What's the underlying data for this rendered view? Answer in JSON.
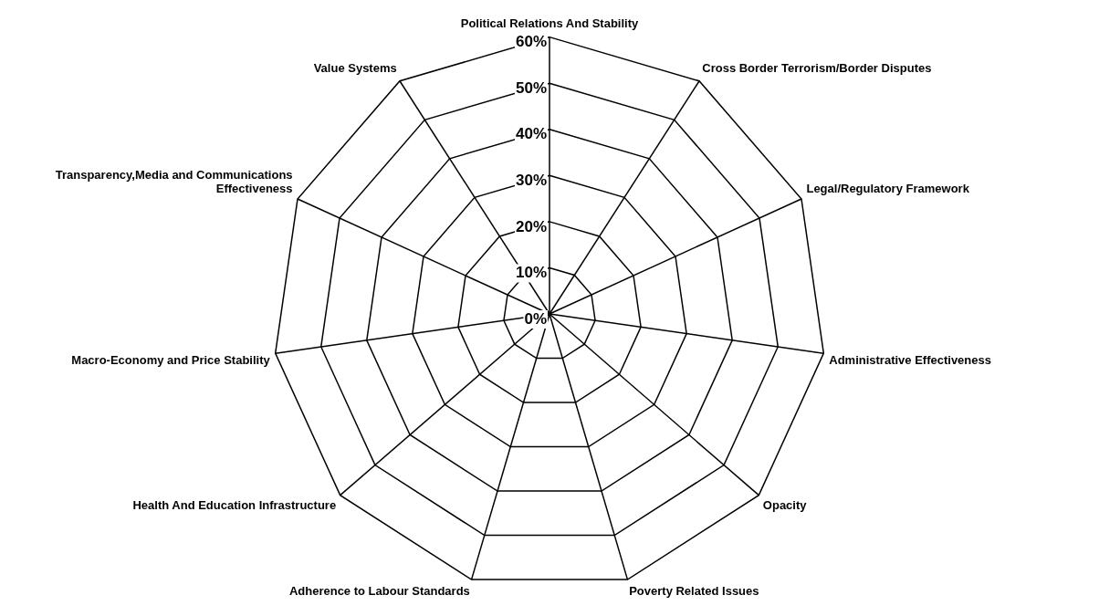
{
  "chart_data": {
    "type": "radar",
    "categories": [
      "Political Relations And Stability",
      "Cross Border Terrorism/Border Disputes",
      "Legal/Regulatory Framework",
      "Administrative Effectiveness",
      "Opacity",
      "Poverty Related Issues",
      "Adherence to Labour Standards",
      "Health And Education Infrastructure",
      "Macro-Economy and Price Stability",
      "Transparency,Media and Communications Effectiveness",
      "Value Systems"
    ],
    "ylim": [
      0,
      60
    ],
    "yticks": [
      {
        "value": 0,
        "label": "0%"
      },
      {
        "value": 10,
        "label": "10%"
      },
      {
        "value": 20,
        "label": "20%"
      },
      {
        "value": 30,
        "label": "30%"
      },
      {
        "value": 40,
        "label": "40%"
      },
      {
        "value": 50,
        "label": "50%"
      },
      {
        "value": 60,
        "label": "60%"
      }
    ],
    "grid": true,
    "legend": false
  }
}
